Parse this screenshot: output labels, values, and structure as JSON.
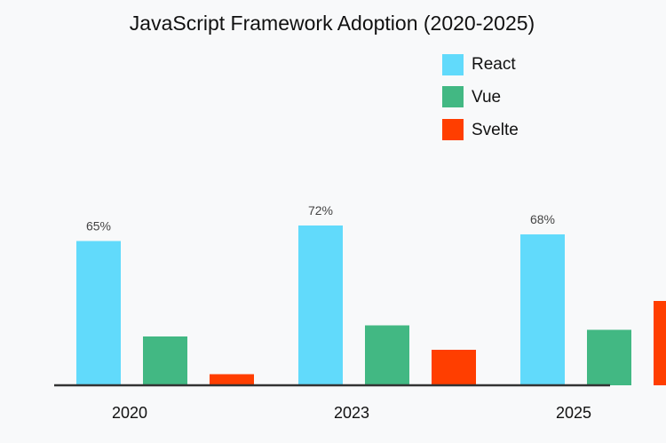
{
  "chart_data": {
    "type": "bar",
    "title": "JavaScript Framework Adoption (2020-2025)",
    "categories": [
      "2020",
      "2023",
      "2025"
    ],
    "series": [
      {
        "name": "React",
        "color": "#61dafb",
        "values": [
          65,
          72,
          68
        ],
        "labels": [
          "65%",
          "72%",
          "68%"
        ]
      },
      {
        "name": "Vue",
        "color": "#42b883",
        "values": [
          22,
          27,
          25
        ],
        "labels": [
          "",
          "",
          ""
        ]
      },
      {
        "name": "Svelte",
        "color": "#ff3e00",
        "values": [
          5,
          16,
          38
        ],
        "labels": [
          "",
          "",
          ""
        ]
      }
    ],
    "xlabel": "",
    "ylabel": "",
    "ylim": [
      0,
      100
    ],
    "legend_position": "top-right",
    "grid": false
  }
}
